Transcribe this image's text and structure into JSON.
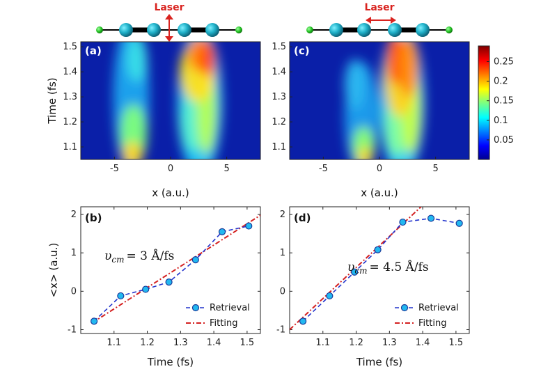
{
  "chart_data": [
    {
      "id": "a",
      "type": "heatmap",
      "panel_label": "(a)",
      "xlabel": "x (a.u.)",
      "ylabel": "Time (fs)",
      "xlim": [
        -8,
        8
      ],
      "ylim": [
        1.05,
        1.52
      ],
      "xticks": [
        -5,
        0,
        5
      ],
      "yticks": [
        1.1,
        1.2,
        1.3,
        1.4,
        1.5
      ],
      "top_label": "Laser",
      "laser_direction": "vertical",
      "description_peaks": [
        {
          "x": -3.5,
          "t_range": [
            1.05,
            1.52
          ],
          "intensity": "medium, stronger at low t"
        },
        {
          "x": 2.8,
          "t_range": [
            1.05,
            1.52
          ],
          "intensity": "high at t > 1.35"
        }
      ]
    },
    {
      "id": "c",
      "type": "heatmap",
      "panel_label": "(c)",
      "xlabel": "x (a.u.)",
      "xlim": [
        -8,
        8
      ],
      "ylim": [
        1.05,
        1.52
      ],
      "xticks": [
        -5,
        0,
        5
      ],
      "yticks": [
        1.1,
        1.2,
        1.3,
        1.4,
        1.5
      ],
      "top_label": "Laser",
      "laser_direction": "horizontal",
      "colorbar": {
        "range": [
          0,
          0.29
        ],
        "ticks": [
          0.05,
          0.1,
          0.15,
          0.2,
          0.25
        ],
        "colormap": "jet"
      }
    },
    {
      "id": "b",
      "type": "line",
      "panel_label": "(b)",
      "xlabel": "Time (fs)",
      "ylabel": "<x> (a.u.)",
      "xlim": [
        1.0,
        1.54
      ],
      "ylim": [
        -1.1,
        2.2
      ],
      "xticks": [
        1.1,
        1.2,
        1.3,
        1.4,
        1.5
      ],
      "yticks": [
        -1,
        0,
        1,
        2
      ],
      "annotation": "= 3 Å/fs",
      "annotation_symbol": "υ",
      "annotation_sub": "cm",
      "legend": {
        "placement": "lower-right",
        "entries": [
          "Retrieval",
          "Fitting"
        ]
      },
      "series": [
        {
          "name": "Retrieval",
          "color": "#2233cc",
          "marker_color": "#22b8f0",
          "x": [
            1.04,
            1.12,
            1.195,
            1.265,
            1.345,
            1.425,
            1.505
          ],
          "y": [
            -0.78,
            -0.12,
            0.05,
            0.24,
            0.82,
            1.55,
            1.7
          ]
        },
        {
          "name": "Fitting",
          "color": "#d42020",
          "x": [
            1.035,
            1.54
          ],
          "y": [
            -0.82,
            1.98
          ]
        }
      ]
    },
    {
      "id": "d",
      "type": "line",
      "panel_label": "(d)",
      "xlabel": "Time (fs)",
      "xlim": [
        1.0,
        1.54
      ],
      "ylim": [
        -1.1,
        2.2
      ],
      "xticks": [
        1.1,
        1.2,
        1.3,
        1.4,
        1.5
      ],
      "yticks": [
        -1,
        0,
        1,
        2
      ],
      "annotation": "= 4.5 Å/fs",
      "annotation_symbol": "υ",
      "annotation_sub": "cm",
      "legend": {
        "placement": "lower-right",
        "entries": [
          "Retrieval",
          "Fitting"
        ]
      },
      "series": [
        {
          "name": "Retrieval",
          "color": "#2233cc",
          "marker_color": "#22b8f0",
          "x": [
            1.04,
            1.12,
            1.195,
            1.265,
            1.34,
            1.425,
            1.51
          ],
          "y": [
            -0.78,
            -0.12,
            0.5,
            1.08,
            1.8,
            1.9,
            1.77
          ]
        },
        {
          "name": "Fitting",
          "color": "#d42020",
          "x": [
            1.0,
            1.395
          ],
          "y": [
            -1.0,
            2.2
          ]
        }
      ]
    }
  ]
}
